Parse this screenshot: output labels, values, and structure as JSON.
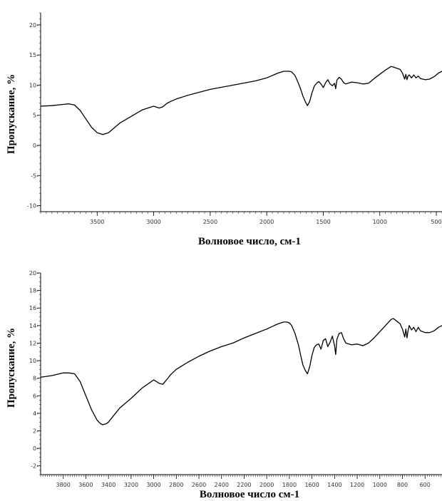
{
  "chart_data": [
    {
      "type": "line",
      "title": "",
      "xlabel": "Волновое число, см-1",
      "ylabel": "Пропускание, %",
      "xlim": [
        4000,
        450
      ],
      "ylim": [
        -11,
        22
      ],
      "x_ticks": [
        3500,
        3000,
        2500,
        2000,
        1500,
        1000,
        500
      ],
      "x_tick_labels": [
        "3500",
        "3000",
        "2500",
        "2000",
        "1500",
        "1000",
        "500"
      ],
      "y_ticks": [
        20,
        15,
        10,
        5,
        0,
        -5,
        -10
      ],
      "y_tick_labels": [
        "20-",
        "15-",
        "10-",
        "5-",
        "0-",
        "-5-",
        "-10-"
      ],
      "grid": false,
      "series": [
        {
          "color": "#000000",
          "x": [
            4000,
            3900,
            3800,
            3750,
            3700,
            3650,
            3600,
            3550,
            3500,
            3450,
            3400,
            3350,
            3300,
            3200,
            3100,
            3000,
            2950,
            2920,
            2880,
            2850,
            2800,
            2700,
            2500,
            2300,
            2100,
            2000,
            1900,
            1850,
            1800,
            1780,
            1750,
            1720,
            1700,
            1680,
            1660,
            1640,
            1620,
            1600,
            1580,
            1560,
            1540,
            1520,
            1500,
            1480,
            1460,
            1440,
            1420,
            1400,
            1390,
            1380,
            1360,
            1340,
            1320,
            1300,
            1250,
            1200,
            1150,
            1100,
            1050,
            1000,
            950,
            900,
            880,
            850,
            820,
            800,
            780,
            770,
            760,
            750,
            740,
            720,
            700,
            680,
            660,
            640,
            620,
            600,
            560,
            520,
            480,
            450
          ],
          "y": [
            6.5,
            6.6,
            6.8,
            6.9,
            6.7,
            5.8,
            4.4,
            3.0,
            2.1,
            1.8,
            2.1,
            2.9,
            3.7,
            4.8,
            5.9,
            6.5,
            6.2,
            6.4,
            7.0,
            7.3,
            7.7,
            8.3,
            9.3,
            10.0,
            10.7,
            11.2,
            12.0,
            12.3,
            12.3,
            12.2,
            11.6,
            10.3,
            9.3,
            8.2,
            7.3,
            6.6,
            7.3,
            8.7,
            9.8,
            10.3,
            10.6,
            10.2,
            9.6,
            10.4,
            10.9,
            10.2,
            9.9,
            10.3,
            9.4,
            10.8,
            11.3,
            11.0,
            10.4,
            10.2,
            10.5,
            10.4,
            10.2,
            10.3,
            11.1,
            11.8,
            12.5,
            13.1,
            13.0,
            12.8,
            12.6,
            12.0,
            11.0,
            11.8,
            10.9,
            11.5,
            11.7,
            11.2,
            11.7,
            11.2,
            11.5,
            11.1,
            11.0,
            10.9,
            11.0,
            11.4,
            12.0,
            12.3
          ]
        }
      ]
    },
    {
      "type": "line",
      "title": "",
      "xlabel": "Волновое число  см-1",
      "ylabel": "Пропускание, %",
      "xlim": [
        4000,
        450
      ],
      "ylim": [
        -3,
        20
      ],
      "x_ticks": [
        3800,
        3600,
        3400,
        3200,
        3000,
        2800,
        2600,
        2400,
        2200,
        2000,
        1800,
        1600,
        1400,
        1200,
        1000,
        800,
        600
      ],
      "x_tick_labels": [
        "3800",
        "3600",
        "3400",
        "3200",
        "3000",
        "2800",
        "2600",
        "2400",
        "2200",
        "2000",
        "1800",
        "1600",
        "1400",
        "1200",
        "1000",
        "800",
        "600"
      ],
      "y_ticks": [
        20,
        18,
        16,
        14,
        12,
        10,
        8,
        6,
        4,
        2,
        0,
        -2
      ],
      "y_tick_labels": [
        "20-",
        "18-",
        "16-",
        "14-",
        "12-",
        "10-",
        "8-",
        "6-",
        "4-",
        "2-",
        "0-",
        "-2-"
      ],
      "grid": false,
      "series": [
        {
          "color": "#000000",
          "x": [
            4000,
            3900,
            3800,
            3750,
            3700,
            3650,
            3600,
            3550,
            3500,
            3470,
            3450,
            3420,
            3400,
            3350,
            3300,
            3200,
            3100,
            3000,
            2950,
            2920,
            2880,
            2850,
            2800,
            2700,
            2600,
            2500,
            2400,
            2300,
            2200,
            2100,
            2000,
            1900,
            1850,
            1820,
            1800,
            1780,
            1750,
            1720,
            1700,
            1680,
            1660,
            1640,
            1620,
            1600,
            1580,
            1560,
            1540,
            1520,
            1500,
            1480,
            1460,
            1440,
            1420,
            1400,
            1390,
            1380,
            1360,
            1340,
            1320,
            1300,
            1250,
            1200,
            1150,
            1100,
            1050,
            1000,
            950,
            900,
            880,
            850,
            820,
            800,
            780,
            770,
            760,
            750,
            740,
            720,
            700,
            680,
            660,
            640,
            620,
            600,
            560,
            520,
            480,
            450
          ],
          "y": [
            8.1,
            8.3,
            8.6,
            8.6,
            8.5,
            7.6,
            6.0,
            4.4,
            3.2,
            2.8,
            2.7,
            2.8,
            3.0,
            3.8,
            4.6,
            5.7,
            6.9,
            7.8,
            7.4,
            7.3,
            7.9,
            8.4,
            9.0,
            9.8,
            10.5,
            11.1,
            11.6,
            12.0,
            12.6,
            13.1,
            13.6,
            14.2,
            14.4,
            14.4,
            14.3,
            14.0,
            13.1,
            11.8,
            10.6,
            9.5,
            8.9,
            8.5,
            9.3,
            10.6,
            11.5,
            11.8,
            11.9,
            11.3,
            12.3,
            12.5,
            11.6,
            12.1,
            12.8,
            11.7,
            10.7,
            12.4,
            13.1,
            13.2,
            12.5,
            12.0,
            11.8,
            11.9,
            11.7,
            12.0,
            12.6,
            13.3,
            14.0,
            14.7,
            14.8,
            14.5,
            14.2,
            13.6,
            12.7,
            13.6,
            12.6,
            13.4,
            14.0,
            13.5,
            13.8,
            13.3,
            13.8,
            13.4,
            13.3,
            13.2,
            13.2,
            13.4,
            13.8,
            14.0
          ]
        }
      ]
    }
  ]
}
